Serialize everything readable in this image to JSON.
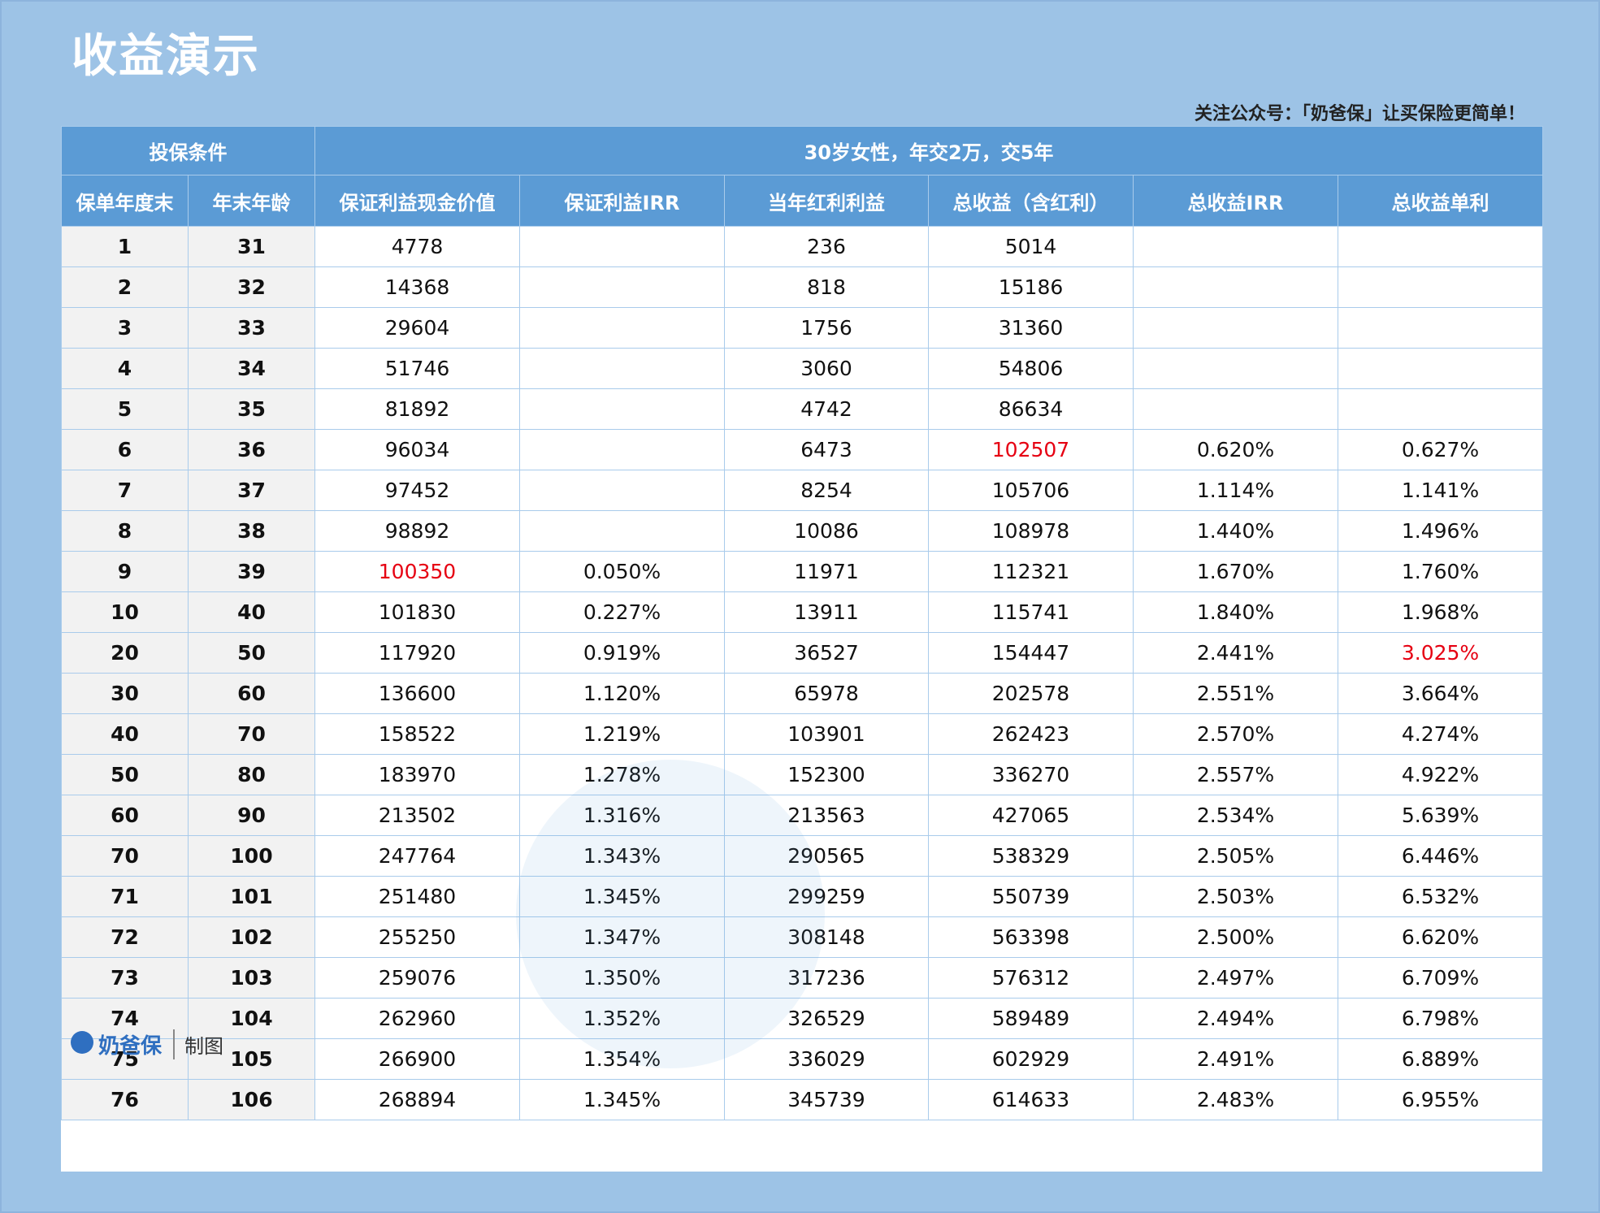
{
  "header": {
    "title": "收益演示",
    "note": "关注公众号：「奶爸保」让买保险更简单！"
  },
  "table": {
    "condition_label": "投保条件",
    "condition": "30岁女性，年交2万，交5年",
    "columns": [
      "保单年度末",
      "年末年龄",
      "保证利益现金价值",
      "保证利益IRR",
      "当年红利利益",
      "总收益（含红利）",
      "总收益IRR",
      "总收益单利"
    ],
    "rows": [
      [
        1,
        31,
        4778,
        null,
        236,
        5014,
        null,
        null
      ],
      [
        2,
        32,
        14368,
        null,
        818,
        15186,
        null,
        null
      ],
      [
        3,
        33,
        29604,
        null,
        1756,
        31360,
        null,
        null
      ],
      [
        4,
        34,
        51746,
        null,
        3060,
        54806,
        null,
        null
      ],
      [
        5,
        35,
        81892,
        null,
        4742,
        86634,
        null,
        null
      ],
      [
        6,
        36,
        96034,
        null,
        6473,
        102507,
        "0.620%",
        "0.627%"
      ],
      [
        7,
        37,
        97452,
        null,
        8254,
        105706,
        "1.114%",
        "1.141%"
      ],
      [
        8,
        38,
        98892,
        null,
        10086,
        108978,
        "1.440%",
        "1.496%"
      ],
      [
        9,
        39,
        100350,
        "0.050%",
        11971,
        112321,
        "1.670%",
        "1.760%"
      ],
      [
        10,
        40,
        101830,
        "0.227%",
        13911,
        115741,
        "1.840%",
        "1.968%"
      ],
      [
        20,
        50,
        117920,
        "0.919%",
        36527,
        154447,
        "2.441%",
        "3.025%"
      ],
      [
        30,
        60,
        136600,
        "1.120%",
        65978,
        202578,
        "2.551%",
        "3.664%"
      ],
      [
        40,
        70,
        158522,
        "1.219%",
        103901,
        262423,
        "2.570%",
        "4.274%"
      ],
      [
        50,
        80,
        183970,
        "1.278%",
        152300,
        336270,
        "2.557%",
        "4.922%"
      ],
      [
        60,
        90,
        213502,
        "1.316%",
        213563,
        427065,
        "2.534%",
        "5.639%"
      ],
      [
        70,
        100,
        247764,
        "1.343%",
        290565,
        538329,
        "2.505%",
        "6.446%"
      ],
      [
        71,
        101,
        251480,
        "1.345%",
        299259,
        550739,
        "2.503%",
        "6.532%"
      ],
      [
        72,
        102,
        255250,
        "1.347%",
        308148,
        563398,
        "2.500%",
        "6.620%"
      ],
      [
        73,
        103,
        259076,
        "1.350%",
        317236,
        576312,
        "2.497%",
        "6.709%"
      ],
      [
        74,
        104,
        262960,
        "1.352%",
        326529,
        589489,
        "2.494%",
        "6.798%"
      ],
      [
        75,
        105,
        266900,
        "1.354%",
        336029,
        602929,
        "2.491%",
        "6.889%"
      ],
      [
        76,
        106,
        268894,
        "1.345%",
        345739,
        614633,
        "2.483%",
        "6.955%"
      ]
    ],
    "highlighted": [
      "table.rows.5.5",
      "table.rows.8.2",
      "table.rows.10.7"
    ]
  },
  "footer": {
    "logo": "奶爸保",
    "label": "制图"
  }
}
